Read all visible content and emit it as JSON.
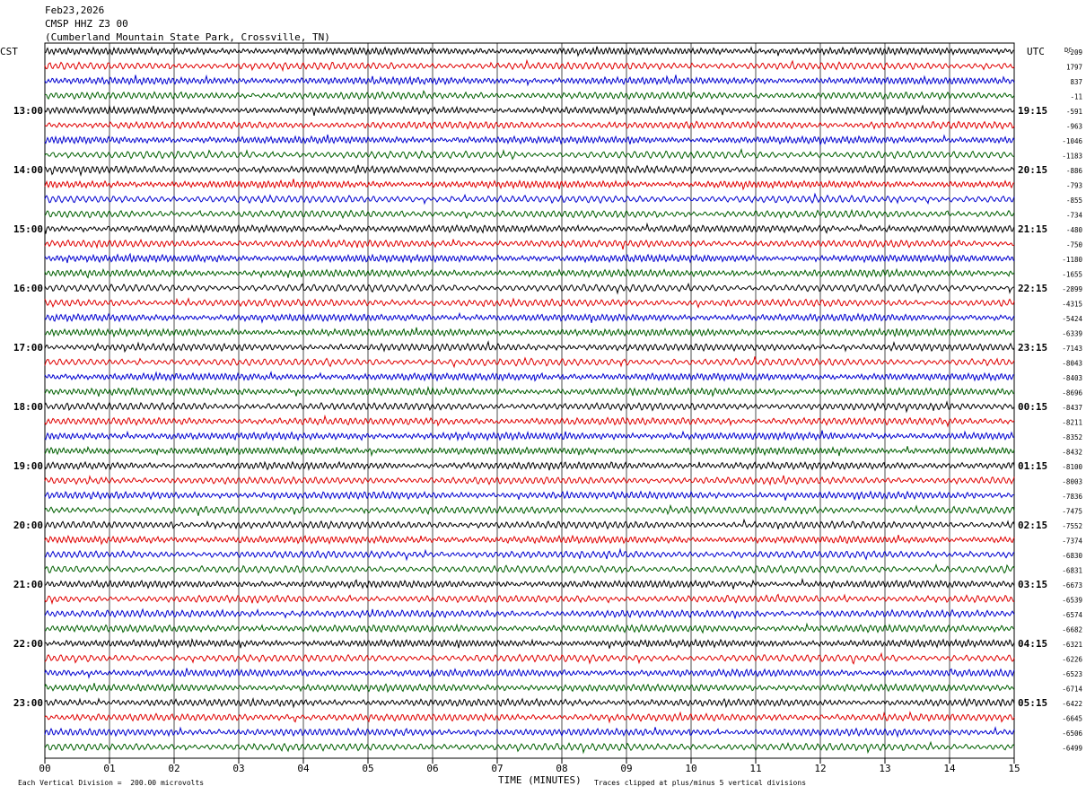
{
  "header": {
    "date": "Feb23,2026",
    "station": "CMSP HHZ Z3 00",
    "location": "(Cumberland Mountain State Park, Crossville, TN)"
  },
  "labels": {
    "left_tz": "CST",
    "right_tz": "UTC",
    "dc": "DC",
    "x_title": "TIME (MINUTES)",
    "scale_note": "Each Vertical Division =  200.00 microvolts",
    "clip_note": "Traces clipped at plus/minus 5 vertical divisions"
  },
  "colors": {
    "trace_cycle": [
      "#000000",
      "#e00000",
      "#0000d0",
      "#006000"
    ],
    "grid": "#000000"
  },
  "chart_data": {
    "type": "line",
    "title": "CMSP HHZ Z3 00",
    "xlabel": "TIME (MINUTES)",
    "xlim": [
      0,
      15
    ],
    "x_ticks": [
      "00",
      "01",
      "02",
      "03",
      "04",
      "05",
      "06",
      "07",
      "08",
      "09",
      "10",
      "11",
      "12",
      "13",
      "14",
      "15"
    ],
    "minutes_per_line": 15,
    "line_count": 48,
    "left_hour_labels": [
      "13:00",
      "14:00",
      "15:00",
      "16:00",
      "17:00",
      "18:00",
      "19:00",
      "20:00",
      "21:00",
      "22:00",
      "23:00"
    ],
    "right_hour_labels": [
      "19:15",
      "20:15",
      "21:15",
      "22:15",
      "23:15",
      "00:15",
      "01:15",
      "02:15",
      "03:15",
      "04:15",
      "05:15"
    ],
    "dc_offsets": [
      "-209",
      "1797",
      "837",
      "-11",
      "-591",
      "-963",
      "-1046",
      "-1183",
      "-886",
      "-793",
      "-855",
      "-734",
      "-480",
      "-750",
      "-1180",
      "-1655",
      "-2899",
      "-4315",
      "-5424",
      "-6339",
      "-7143",
      "-8043",
      "-8403",
      "-8696",
      "-8437",
      "-8211",
      "-8352",
      "-8432",
      "-8100",
      "-8003",
      "-7836",
      "-7475",
      "-7552",
      "-7374",
      "-6830",
      "-6831",
      "-6673",
      "-6539",
      "-6574",
      "-6682",
      "-6321",
      "-6226",
      "-6523",
      "-6714",
      "-6422",
      "-6645",
      "-6506",
      "-6499"
    ],
    "vertical_division_microvolts": 200.0
  }
}
